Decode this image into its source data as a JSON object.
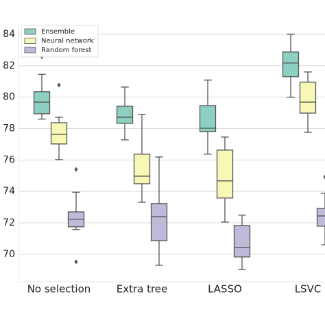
{
  "chart_data": {
    "type": "box",
    "categories": [
      "No selection",
      "Extra tree",
      "LASSO",
      "LSVC"
    ],
    "ylim": [
      68.25,
      84.65
    ],
    "yticks": [
      70,
      72,
      74,
      76,
      78,
      80,
      82,
      84
    ],
    "grid": true,
    "legend": "upper left",
    "series": [
      {
        "name": "Ensemble",
        "color": "#8dcfc0",
        "boxes": [
          {
            "whislo": 78.6,
            "q1": 78.94,
            "med": 79.68,
            "q3": 80.34,
            "whishi": 81.45,
            "fliers": [
              82.56
            ]
          },
          {
            "whislo": 77.28,
            "q1": 78.33,
            "med": 78.72,
            "q3": 79.42,
            "whishi": 80.64,
            "fliers": []
          },
          {
            "whislo": 76.37,
            "q1": 77.81,
            "med": 78.02,
            "q3": 79.46,
            "whishi": 81.08,
            "fliers": []
          },
          {
            "whislo": 79.99,
            "q1": 81.3,
            "med": 82.17,
            "q3": 82.87,
            "whishi": 84.0,
            "fliers": []
          }
        ]
      },
      {
        "name": "Neural network",
        "color": "#f7f7b6",
        "boxes": [
          {
            "whislo": 76.02,
            "q1": 77.02,
            "med": 77.63,
            "q3": 78.37,
            "whishi": 78.72,
            "fliers": [
              80.77
            ]
          },
          {
            "whislo": 73.31,
            "q1": 74.49,
            "med": 74.97,
            "q3": 76.37,
            "whishi": 78.9,
            "fliers": []
          },
          {
            "whislo": 72.05,
            "q1": 73.58,
            "med": 74.67,
            "q3": 76.63,
            "whishi": 77.46,
            "fliers": []
          },
          {
            "whislo": 77.76,
            "q1": 78.98,
            "med": 79.68,
            "q3": 80.95,
            "whishi": 81.6,
            "fliers": []
          }
        ]
      },
      {
        "name": "Random forest",
        "color": "#bebad8",
        "boxes": [
          {
            "whislo": 71.57,
            "q1": 71.75,
            "med": 72.23,
            "q3": 72.7,
            "whishi": 73.95,
            "fliers": [
              75.4,
              69.52
            ]
          },
          {
            "whislo": 69.3,
            "q1": 70.87,
            "med": 72.4,
            "q3": 73.23,
            "whishi": 76.19,
            "fliers": []
          },
          {
            "whislo": 69.04,
            "q1": 69.83,
            "med": 70.44,
            "q3": 71.83,
            "whishi": 72.49,
            "fliers": []
          },
          {
            "whislo": 70.6,
            "q1": 71.79,
            "med": 72.44,
            "q3": 72.92,
            "whishi": 73.88,
            "fliers": [
              74.93
            ]
          }
        ]
      }
    ]
  }
}
